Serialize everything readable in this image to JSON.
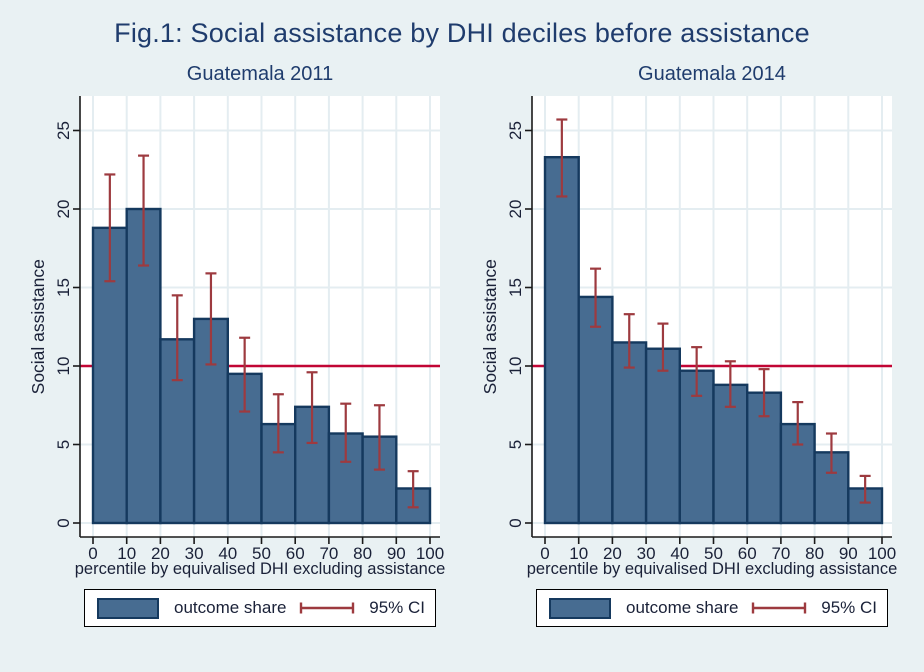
{
  "title": "Fig.1: Social assistance by DHI deciles before assistance",
  "legend": {
    "bar_label": "outcome share",
    "ci_label": "95% CI"
  },
  "colors": {
    "background": "#e9f1f3",
    "plot_bg": "#ffffff",
    "grid": "#e4edf1",
    "bar_fill": "#476c91",
    "bar_border": "#15395e",
    "ci": "#9d3a3f",
    "refline": "#c10534",
    "axis": "#1a1a1a",
    "title_text": "#1f3c6d",
    "text": "#1a2138"
  },
  "chart_data": [
    {
      "type": "bar",
      "title": "Guatemala 2011",
      "xlabel": "percentile by equivalised DHI excluding assistance",
      "ylabel": "Social assistance",
      "categories": [
        "0-10",
        "10-20",
        "20-30",
        "30-40",
        "40-50",
        "50-60",
        "60-70",
        "70-80",
        "80-90",
        "90-100"
      ],
      "values": [
        18.8,
        20.0,
        11.7,
        13.0,
        9.5,
        6.3,
        7.4,
        5.7,
        5.5,
        2.2
      ],
      "ci_low": [
        15.4,
        16.4,
        9.1,
        10.1,
        7.1,
        4.5,
        5.1,
        3.9,
        3.4,
        1.0
      ],
      "ci_high": [
        22.2,
        23.4,
        14.5,
        15.9,
        11.8,
        8.2,
        9.6,
        7.6,
        7.5,
        3.3
      ],
      "refline": 10,
      "xticks": [
        0,
        10,
        20,
        30,
        40,
        50,
        60,
        70,
        80,
        90,
        100
      ],
      "yticks": [
        0,
        5,
        10,
        15,
        20,
        25
      ],
      "xlim": [
        0,
        100
      ],
      "ylim": [
        0,
        25
      ],
      "grid": true,
      "legend_position": "bottom"
    },
    {
      "type": "bar",
      "title": "Guatemala 2014",
      "xlabel": "percentile by equivalised DHI excluding assistance",
      "ylabel": "Social assistance",
      "categories": [
        "0-10",
        "10-20",
        "20-30",
        "30-40",
        "40-50",
        "50-60",
        "60-70",
        "70-80",
        "80-90",
        "90-100"
      ],
      "values": [
        23.3,
        14.4,
        11.5,
        11.1,
        9.7,
        8.8,
        8.3,
        6.3,
        4.5,
        2.2
      ],
      "ci_low": [
        20.8,
        12.5,
        9.9,
        9.7,
        8.1,
        7.4,
        6.8,
        5.0,
        3.2,
        1.3
      ],
      "ci_high": [
        25.7,
        16.2,
        13.3,
        12.7,
        11.2,
        10.3,
        9.8,
        7.7,
        5.7,
        3.0
      ],
      "refline": 10,
      "xticks": [
        0,
        10,
        20,
        30,
        40,
        50,
        60,
        70,
        80,
        90,
        100
      ],
      "yticks": [
        0,
        5,
        10,
        15,
        20,
        25
      ],
      "xlim": [
        0,
        100
      ],
      "ylim": [
        0,
        25
      ],
      "grid": true,
      "legend_position": "bottom"
    }
  ]
}
